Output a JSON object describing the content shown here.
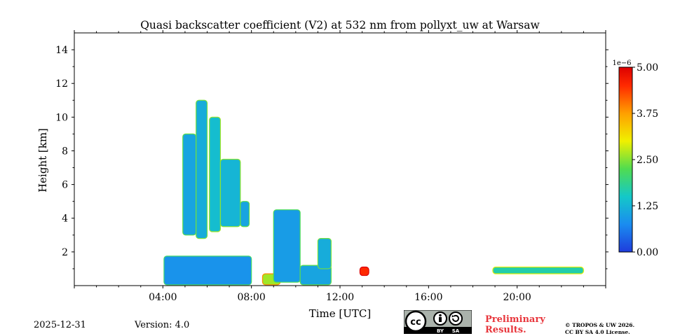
{
  "chart_data": {
    "type": "heatmap",
    "title": "Quasi backscatter coefficient (V2) at 532 nm from pollyxt_uw at Warsaw",
    "xlabel": "Time [UTC]",
    "ylabel": "Height [km]",
    "xlim": [
      0,
      24
    ],
    "ylim": [
      0,
      15
    ],
    "x_ticks": [
      {
        "value": 4,
        "label": "04:00"
      },
      {
        "value": 8,
        "label": "08:00"
      },
      {
        "value": 12,
        "label": "12:00"
      },
      {
        "value": 16,
        "label": "16:00"
      },
      {
        "value": 20,
        "label": "20:00"
      }
    ],
    "y_ticks": [
      {
        "value": 2,
        "label": "2"
      },
      {
        "value": 4,
        "label": "4"
      },
      {
        "value": 6,
        "label": "6"
      },
      {
        "value": 8,
        "label": "8"
      },
      {
        "value": 10,
        "label": "10"
      },
      {
        "value": 12,
        "label": "12"
      },
      {
        "value": 14,
        "label": "14"
      }
    ],
    "colorbar": {
      "min": 0.0,
      "max": 5.0,
      "scale_label": "1e−6",
      "ticks": [
        "0.00",
        "1.25",
        "2.50",
        "3.75",
        "5.00"
      ],
      "tick_values": [
        0.0,
        1.25,
        2.5,
        3.75,
        5.0
      ],
      "colormap": [
        "#1e3cdc",
        "#1a8cf0",
        "#14c8c8",
        "#50dc50",
        "#f0f000",
        "#ffa000",
        "#ff2a00",
        "#dc0000"
      ]
    },
    "regions": [
      {
        "t0": 4.05,
        "t1": 8.0,
        "h0": 0.05,
        "h1": 1.75,
        "value": 0.8
      },
      {
        "t0": 4.9,
        "t1": 5.5,
        "h0": 3.0,
        "h1": 9.0,
        "value": 1.0
      },
      {
        "t0": 5.5,
        "t1": 6.0,
        "h0": 2.8,
        "h1": 11.0,
        "value": 1.1
      },
      {
        "t0": 6.1,
        "t1": 6.6,
        "h0": 3.2,
        "h1": 10.0,
        "value": 1.3
      },
      {
        "t0": 6.6,
        "t1": 7.5,
        "h0": 3.5,
        "h1": 7.5,
        "value": 1.2
      },
      {
        "t0": 7.5,
        "t1": 7.9,
        "h0": 3.5,
        "h1": 5.0,
        "value": 1.0
      },
      {
        "t0": 8.5,
        "t1": 9.3,
        "h0": 0.05,
        "h1": 0.7,
        "value": 2.5
      },
      {
        "t0": 9.0,
        "t1": 10.2,
        "h0": 0.2,
        "h1": 4.5,
        "value": 0.9
      },
      {
        "t0": 10.2,
        "t1": 11.6,
        "h0": 0.05,
        "h1": 1.2,
        "value": 1.0
      },
      {
        "t0": 11.0,
        "t1": 11.6,
        "h0": 1.0,
        "h1": 2.8,
        "value": 1.1
      },
      {
        "t0": 12.9,
        "t1": 13.3,
        "h0": 0.6,
        "h1": 1.1,
        "value": 4.3
      },
      {
        "t0": 18.9,
        "t1": 23.0,
        "h0": 0.7,
        "h1": 1.1,
        "value": 1.6
      }
    ]
  },
  "footer": {
    "date": "2025-12-31",
    "version": "Version: 4.0",
    "preliminary_line1": "Preliminary",
    "preliminary_line2": "Results.",
    "copyright_line1": "© TROPOS & UW 2026.",
    "copyright_line2": "CC BY SA 4.0 License.",
    "license_by": "BY",
    "license_sa": "SA"
  },
  "colors": {
    "preliminary": "#e8363c",
    "badge_bg": "#aab2ab",
    "badge_dark": "#000000"
  }
}
